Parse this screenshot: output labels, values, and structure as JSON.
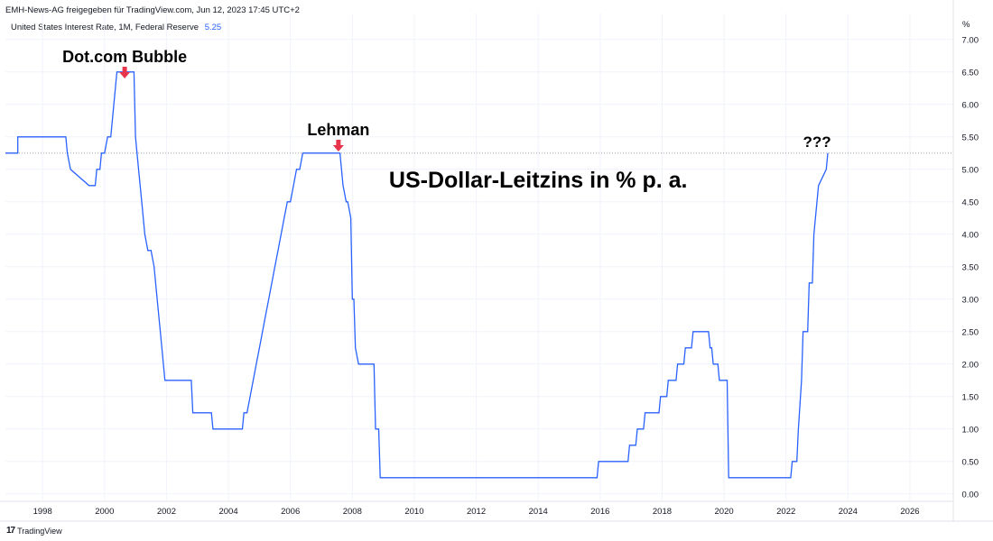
{
  "header": {
    "text": "EMH-News-AG freigegeben für TradingView.com, Jun 12, 2023 17:45 UTC+2"
  },
  "legend": {
    "label": "United States Interest Rate, 1M, Federal Reserve",
    "value": "5.25"
  },
  "unit": "%",
  "footer": {
    "logo": "17",
    "brand": "TradingView"
  },
  "annotations": [
    {
      "text": "Dot.com Bubble",
      "arrow": true,
      "x": 2000.65
    },
    {
      "text": "Lehman",
      "arrow": true,
      "x": 2007.55
    },
    {
      "text": "???",
      "arrow": false,
      "x": 2023.0
    },
    {
      "text": "US-Dollar-Leitzins in % p. a.",
      "arrow": false,
      "x": 2014.0
    }
  ],
  "colors": {
    "line": "#2962ff",
    "arrow": "#e8344a",
    "grid": "#f0f3fa",
    "dotted": "#9598a1"
  },
  "chart_data": {
    "type": "line",
    "title": "US-Dollar-Leitzins in % p. a.",
    "xlabel": "",
    "ylabel": "%",
    "xlim": [
      1996.8,
      2027.4
    ],
    "ylim": [
      -0.1,
      7.4
    ],
    "x_ticks": [
      "1998",
      "2000",
      "2002",
      "2004",
      "2006",
      "2008",
      "2010",
      "2012",
      "2014",
      "2016",
      "2018",
      "2020",
      "2022",
      "2024",
      "2026"
    ],
    "y_ticks": [
      "0.00",
      "0.50",
      "1.00",
      "1.50",
      "2.00",
      "2.50",
      "3.00",
      "3.50",
      "4.00",
      "4.50",
      "5.00",
      "5.50",
      "6.00",
      "6.50",
      "7.00"
    ],
    "last_value": 5.25,
    "series": [
      {
        "name": "United States Interest Rate, 1M, Federal Reserve",
        "x": [
          1996.8,
          1997.2,
          1997.2,
          1998.75,
          1998.8,
          1998.9,
          1999.5,
          1999.55,
          1999.7,
          1999.75,
          1999.85,
          1999.9,
          2000.0,
          2000.1,
          2000.2,
          2000.3,
          2000.4,
          2000.95,
          2001.0,
          2001.1,
          2001.2,
          2001.3,
          2001.4,
          2001.5,
          2001.6,
          2001.7,
          2001.8,
          2001.9,
          2001.95,
          2002.8,
          2002.85,
          2003.45,
          2003.5,
          2004.45,
          2004.5,
          2004.6,
          2004.7,
          2004.8,
          2004.9,
          2005.0,
          2005.1,
          2005.2,
          2005.3,
          2005.4,
          2005.5,
          2005.6,
          2005.7,
          2005.8,
          2005.9,
          2006.0,
          2006.1,
          2006.2,
          2006.3,
          2006.4,
          2006.45,
          2007.6,
          2007.7,
          2007.8,
          2007.85,
          2007.95,
          2008.0,
          2008.05,
          2008.1,
          2008.2,
          2008.25,
          2008.7,
          2008.75,
          2008.85,
          2008.9,
          2015.9,
          2015.95,
          2016.9,
          2016.95,
          2017.15,
          2017.2,
          2017.4,
          2017.45,
          2017.9,
          2017.95,
          2018.15,
          2018.2,
          2018.45,
          2018.5,
          2018.7,
          2018.75,
          2018.95,
          2019.0,
          2019.5,
          2019.55,
          2019.6,
          2019.65,
          2019.8,
          2019.85,
          2020.1,
          2020.15,
          2022.15,
          2022.2,
          2022.35,
          2022.4,
          2022.5,
          2022.55,
          2022.7,
          2022.75,
          2022.85,
          2022.9,
          2023.0,
          2023.05,
          2023.3,
          2023.35
        ],
        "values": [
          5.25,
          5.25,
          5.5,
          5.5,
          5.25,
          5.0,
          4.75,
          4.75,
          4.75,
          5.0,
          5.0,
          5.25,
          5.25,
          5.5,
          5.5,
          6.0,
          6.5,
          6.5,
          5.5,
          5.0,
          4.5,
          4.0,
          3.75,
          3.75,
          3.5,
          3.0,
          2.5,
          2.0,
          1.75,
          1.75,
          1.25,
          1.25,
          1.0,
          1.0,
          1.25,
          1.25,
          1.5,
          1.75,
          2.0,
          2.25,
          2.5,
          2.75,
          3.0,
          3.25,
          3.5,
          3.75,
          4.0,
          4.25,
          4.5,
          4.5,
          4.75,
          5.0,
          5.0,
          5.25,
          5.25,
          5.25,
          4.75,
          4.5,
          4.5,
          4.25,
          3.0,
          3.0,
          2.25,
          2.0,
          2.0,
          2.0,
          1.0,
          1.0,
          0.25,
          0.25,
          0.5,
          0.5,
          0.75,
          0.75,
          1.0,
          1.0,
          1.25,
          1.25,
          1.5,
          1.5,
          1.75,
          1.75,
          2.0,
          2.0,
          2.25,
          2.25,
          2.5,
          2.5,
          2.25,
          2.25,
          2.0,
          2.0,
          1.75,
          1.75,
          0.25,
          0.25,
          0.5,
          0.5,
          1.0,
          1.75,
          2.5,
          2.5,
          3.25,
          3.25,
          4.0,
          4.5,
          4.75,
          5.0,
          5.25
        ]
      }
    ]
  }
}
